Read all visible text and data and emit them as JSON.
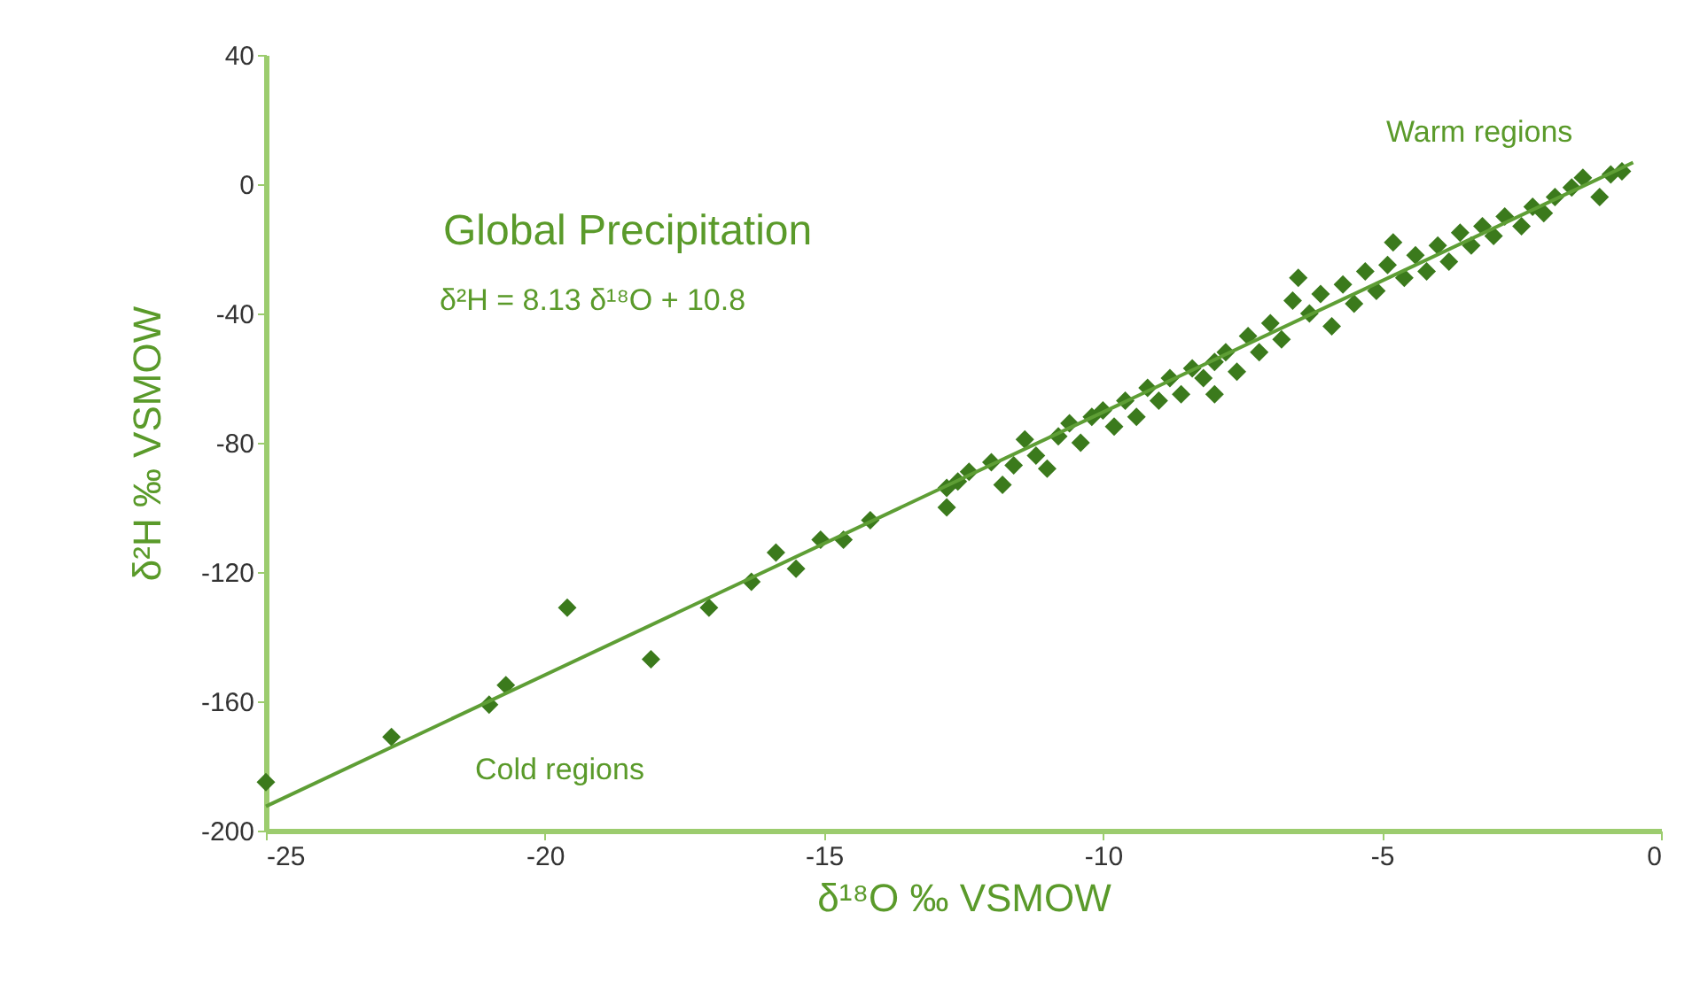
{
  "chart_data": {
    "type": "scatter",
    "title": "Global Precipitation",
    "xlabel": "δ¹⁸O ‰ VSMOW",
    "ylabel": "δ²H ‰ VSMOW",
    "annotations": [
      "δ²H = 8.13 δ¹⁸O + 10.8",
      "Warm regions",
      "Cold regions"
    ],
    "xlim": [
      -25,
      0
    ],
    "xticks": [
      -25,
      -20,
      -15,
      -10,
      -5,
      0
    ],
    "ylim": [
      -200,
      40
    ],
    "yticks": [
      -200,
      -160,
      -120,
      -80,
      -40,
      0,
      40
    ],
    "grid": false,
    "marker": "diamond",
    "series": [
      {
        "color": "#3b7a1c",
        "x": [
          -25,
          -22.75,
          -21,
          -20.7,
          -19.6,
          -18.1,
          -17.06,
          -16.3,
          -15.86,
          -15.5,
          -15.06,
          -14.65,
          -14.17,
          -12.8,
          -12.8,
          -12.6,
          -12.4,
          -12.0,
          -11.8,
          -11.6,
          -11.4,
          -11.2,
          -11.0,
          -10.8,
          -10.6,
          -10.4,
          -10.2,
          -10.0,
          -9.8,
          -9.6,
          -9.4,
          -9.2,
          -9.0,
          -8.8,
          -8.6,
          -8.4,
          -8.2,
          -8.0,
          -8.0,
          -7.8,
          -7.6,
          -7.4,
          -7.2,
          -7.0,
          -6.8,
          -6.6,
          -6.5,
          -6.3,
          -6.1,
          -5.9,
          -5.7,
          -5.5,
          -5.3,
          -5.1,
          -4.9,
          -4.8,
          -4.6,
          -4.4,
          -4.2,
          -4.0,
          -3.8,
          -3.6,
          -3.4,
          -3.2,
          -3.0,
          -2.8,
          -2.5,
          -2.3,
          -2.1,
          -1.9,
          -1.6,
          -1.4,
          -1.1,
          -0.9,
          -0.7
        ],
        "values": [
          -185,
          -171,
          -161,
          -155,
          -131,
          -147,
          -131,
          -123,
          -114,
          -119,
          -110,
          -110,
          -104,
          -100,
          -94,
          -92,
          -89,
          -86,
          -93,
          -87,
          -79,
          -84,
          -88,
          -78,
          -74,
          -80,
          -72,
          -70,
          -75,
          -67,
          -72,
          -63,
          -67,
          -60,
          -65,
          -57,
          -60,
          -55,
          -65,
          -52,
          -58,
          -47,
          -52,
          -43,
          -48,
          -36,
          -29,
          -40,
          -34,
          -44,
          -31,
          -37,
          -27,
          -33,
          -25,
          -18,
          -29,
          -22,
          -27,
          -19,
          -24,
          -15,
          -19,
          -13,
          -16,
          -10,
          -13,
          -7,
          -9,
          -4,
          -1,
          2,
          -4,
          3,
          4
        ]
      },
      {
        "type": "line",
        "marker": "none",
        "color": "#5e9e35",
        "x": [
          -25,
          -0.5
        ],
        "values": [
          -192.5,
          6.7
        ]
      }
    ]
  }
}
